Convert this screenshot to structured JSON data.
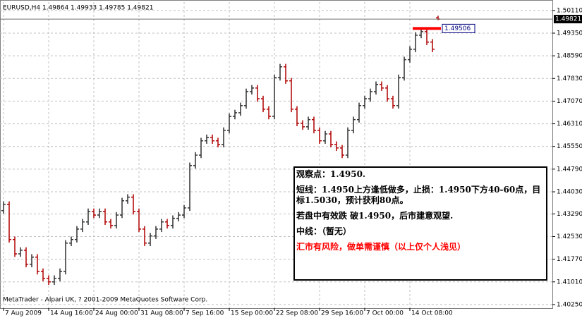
{
  "chart_data": {
    "type": "ohlc",
    "title": "EURUSD,H4  1.49864 1.49933 1.49785 1.49821",
    "copyright": "MetaTrader - Alpari UK, ? 2001-2009 MetaQuotes Software Corp.",
    "up_color": "#303030",
    "down_color": "#b00000",
    "open": [
      1.434,
      1.4361,
      1.4243,
      1.4195,
      1.4207,
      1.416,
      1.4184,
      1.4136,
      1.4113,
      1.4101,
      1.4113,
      1.4136,
      1.4231,
      1.4243,
      1.4278,
      1.4302,
      1.4337,
      1.4325,
      1.4337,
      1.4302,
      1.429,
      1.4325,
      1.4373,
      1.4385,
      1.4337,
      1.4278,
      1.4231,
      1.4255,
      1.4278,
      1.4302,
      1.429,
      1.4314,
      1.4325,
      1.4349,
      1.4491,
      1.4526,
      1.4574,
      1.4585,
      1.4574,
      1.4562,
      1.4609,
      1.4656,
      1.4668,
      1.4692,
      1.4739,
      1.4751,
      1.4715,
      1.468,
      1.4656,
      1.4786,
      1.4822,
      1.4775,
      1.468,
      1.4633,
      1.4621,
      1.4645,
      1.4609,
      1.4574,
      1.4597,
      1.4562,
      1.455,
      1.4526,
      1.4609,
      1.4645,
      1.4692,
      1.4715,
      1.4739,
      1.4763,
      1.4751,
      1.4715,
      1.4692,
      1.4786,
      1.4846,
      1.4881,
      1.4928,
      1.494,
      1.4905,
      1.49864
    ],
    "high": [
      1.4371,
      1.4371,
      1.4253,
      1.4217,
      1.4217,
      1.4194,
      1.4194,
      1.4146,
      1.4123,
      1.4123,
      1.4146,
      1.4241,
      1.4253,
      1.4288,
      1.4312,
      1.4347,
      1.4347,
      1.4347,
      1.4347,
      1.4312,
      1.4335,
      1.4383,
      1.4395,
      1.4395,
      1.4347,
      1.4288,
      1.4265,
      1.4288,
      1.4312,
      1.4312,
      1.4324,
      1.4335,
      1.4359,
      1.4501,
      1.4536,
      1.4584,
      1.4595,
      1.4595,
      1.4584,
      1.4619,
      1.4666,
      1.4678,
      1.4702,
      1.4749,
      1.4761,
      1.4761,
      1.4725,
      1.469,
      1.4796,
      1.4832,
      1.4832,
      1.4785,
      1.469,
      1.4643,
      1.4655,
      1.4655,
      1.4619,
      1.4607,
      1.4607,
      1.4572,
      1.456,
      1.4619,
      1.4655,
      1.4702,
      1.4725,
      1.4749,
      1.4773,
      1.4773,
      1.4761,
      1.4725,
      1.4796,
      1.4856,
      1.4891,
      1.4938,
      1.495,
      1.495,
      1.4915,
      1.49933
    ],
    "low": [
      1.433,
      1.4233,
      1.4185,
      1.4185,
      1.415,
      1.415,
      1.4126,
      1.4103,
      1.4091,
      1.4091,
      1.4103,
      1.4126,
      1.4221,
      1.4233,
      1.4268,
      1.4292,
      1.4315,
      1.4315,
      1.4292,
      1.428,
      1.428,
      1.4315,
      1.4363,
      1.4327,
      1.4268,
      1.4221,
      1.4221,
      1.4245,
      1.4268,
      1.428,
      1.428,
      1.4304,
      1.4315,
      1.4339,
      1.4481,
      1.4516,
      1.4564,
      1.4564,
      1.4552,
      1.4552,
      1.4599,
      1.4646,
      1.4658,
      1.4682,
      1.4729,
      1.4705,
      1.467,
      1.4646,
      1.4646,
      1.4776,
      1.4765,
      1.467,
      1.4623,
      1.4611,
      1.4611,
      1.4599,
      1.4564,
      1.4564,
      1.4552,
      1.454,
      1.4516,
      1.4516,
      1.4599,
      1.4635,
      1.4682,
      1.4705,
      1.4729,
      1.4741,
      1.4705,
      1.4682,
      1.4682,
      1.4776,
      1.4836,
      1.4871,
      1.4918,
      1.4895,
      1.4871,
      1.49785
    ],
    "close": [
      1.4361,
      1.4243,
      1.4195,
      1.4207,
      1.416,
      1.4184,
      1.4136,
      1.4113,
      1.4101,
      1.4113,
      1.4136,
      1.4231,
      1.4243,
      1.4278,
      1.4302,
      1.4337,
      1.4325,
      1.4337,
      1.4302,
      1.429,
      1.4325,
      1.4373,
      1.4385,
      1.4337,
      1.4278,
      1.4231,
      1.4255,
      1.4278,
      1.4302,
      1.429,
      1.4314,
      1.4325,
      1.4349,
      1.4491,
      1.4526,
      1.4574,
      1.4585,
      1.4574,
      1.4562,
      1.4609,
      1.4656,
      1.4668,
      1.4692,
      1.4739,
      1.4751,
      1.4715,
      1.468,
      1.4656,
      1.4786,
      1.4822,
      1.4775,
      1.468,
      1.4633,
      1.4621,
      1.4645,
      1.4609,
      1.4574,
      1.4597,
      1.4562,
      1.455,
      1.4526,
      1.4609,
      1.4645,
      1.4692,
      1.4715,
      1.4739,
      1.4763,
      1.4751,
      1.4715,
      1.4692,
      1.4786,
      1.4846,
      1.4881,
      1.4928,
      1.494,
      1.4905,
      1.4881,
      1.49821
    ],
    "xlim": [
      -0.625,
      97.25
    ],
    "xticks": [
      {
        "value": 0,
        "label": "7 Aug 2009"
      },
      {
        "value": 8,
        "label": "14 Aug 16:00"
      },
      {
        "value": 16,
        "label": "24 Aug 00:00"
      },
      {
        "value": 24,
        "label": "31 Aug 08:00"
      },
      {
        "value": 32,
        "label": "7 Sep 16:00"
      },
      {
        "value": 40,
        "label": "15 Sep 00:00"
      },
      {
        "value": 48,
        "label": "22 Sep 08:00"
      },
      {
        "value": 56,
        "label": "29 Sep 16:00"
      },
      {
        "value": 64,
        "label": "7 Oct 00:00"
      },
      {
        "value": 72,
        "label": "14 Oct 08:00"
      }
    ],
    "ylim": [
      1.4013,
      1.5039
    ],
    "yticks": [
      {
        "value": 1.5011,
        "label": "1.50110"
      },
      {
        "value": 1.4935,
        "label": "1.49350"
      },
      {
        "value": 1.4859,
        "label": "1.48590"
      },
      {
        "value": 1.4783,
        "label": "1.47830"
      },
      {
        "value": 1.4707,
        "label": "1.47070"
      },
      {
        "value": 1.4631,
        "label": "1.46310"
      },
      {
        "value": 1.4555,
        "label": "1.45550"
      },
      {
        "value": 1.4479,
        "label": "1.44790"
      },
      {
        "value": 1.4403,
        "label": "1.44030"
      },
      {
        "value": 1.4329,
        "label": "1.43290"
      },
      {
        "value": 1.4253,
        "label": "1.42530"
      },
      {
        "value": 1.4177,
        "label": "1.41770"
      },
      {
        "value": 1.4101,
        "label": "1.41010"
      },
      {
        "value": 1.4025,
        "label": "1.40250"
      }
    ],
    "grid": true,
    "last_price": 1.49821,
    "level_line": {
      "value": 1.49506,
      "color": "#ff0000",
      "from": 72.5,
      "to": 77.5
    },
    "note": {
      "lines": [
        "观察点：1.4950.",
        "短线：1.4950上方逢低做多，止损：1.4950下方40-60点，目标1.5030，预计获利80点。",
        "若盘中有效跌 破1.4950，后市建意观望.",
        "中线：（暂无）"
      ],
      "warning": "汇市有风险，做单需谨慎（以上仅个人浅见）",
      "warning_color": "#ff0000"
    }
  }
}
